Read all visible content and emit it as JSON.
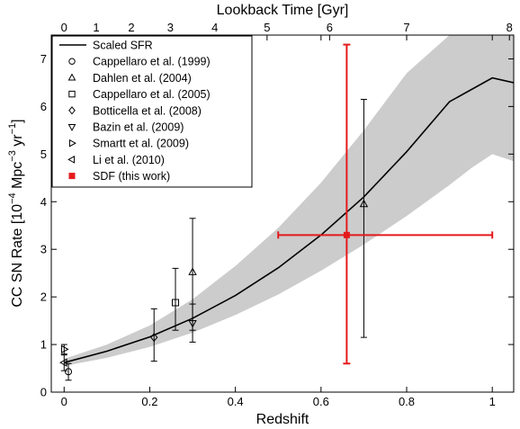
{
  "chart_data": {
    "type": "scatter",
    "xlabel": "Redshift",
    "ylabel_parts": [
      "CC SN Rate [10",
      "−4",
      " Mpc",
      "−3",
      " yr",
      "−1",
      "]"
    ],
    "top_xlabel": "Lookback Time [Gyr]",
    "xlim": [
      -0.03,
      1.05
    ],
    "ylim": [
      0,
      7.5
    ],
    "xticks": [
      0,
      0.2,
      0.4,
      0.6,
      0.8,
      1
    ],
    "xtick_labels": [
      "0",
      "0.2",
      "0.4",
      "0.6",
      "0.8",
      "1"
    ],
    "yticks": [
      0,
      1,
      2,
      3,
      4,
      5,
      6,
      7
    ],
    "ytick_labels": [
      "0",
      "1",
      "2",
      "3",
      "4",
      "5",
      "6",
      "7"
    ],
    "top_ticks": [
      {
        "label": "0",
        "z": 0.0
      },
      {
        "label": "1",
        "z": 0.075
      },
      {
        "label": "2",
        "z": 0.157
      },
      {
        "label": "3",
        "z": 0.248
      },
      {
        "label": "4",
        "z": 0.352
      },
      {
        "label": "5",
        "z": 0.474
      },
      {
        "label": "6",
        "z": 0.62
      },
      {
        "label": "7",
        "z": 0.8
      },
      {
        "label": "8",
        "z": 1.04
      }
    ],
    "legend_position": "top-left",
    "series": [
      {
        "name": "Scaled SFR",
        "kind": "line",
        "color": "#000000",
        "x": [
          0,
          0.1,
          0.2,
          0.3,
          0.4,
          0.5,
          0.6,
          0.7,
          0.8,
          0.9,
          1.0,
          1.05
        ],
        "y": [
          0.62,
          0.86,
          1.16,
          1.55,
          2.03,
          2.61,
          3.3,
          4.1,
          5.05,
          6.1,
          6.6,
          6.5
        ]
      },
      {
        "name": "SFR band",
        "kind": "band",
        "color": "#cccccc",
        "x": [
          0,
          0.1,
          0.2,
          0.3,
          0.4,
          0.5,
          0.6,
          0.7,
          0.8,
          0.9,
          0.95,
          1.0,
          1.05
        ],
        "lower": [
          0.55,
          0.72,
          0.95,
          1.25,
          1.62,
          2.05,
          2.55,
          3.1,
          3.7,
          4.35,
          4.7,
          5.0,
          4.85
        ],
        "upper": [
          0.7,
          1.0,
          1.4,
          1.95,
          2.65,
          3.45,
          4.4,
          5.5,
          6.7,
          7.5,
          7.5,
          7.5,
          7.5
        ]
      },
      {
        "name": "Cappellaro et al. (1999)",
        "kind": "points",
        "marker": "circle",
        "color": "#000000",
        "points": [
          {
            "x": 0.01,
            "y": 0.43,
            "lo": 0.25,
            "hi": 0.6
          }
        ]
      },
      {
        "name": "Dahlen et al. (2004)",
        "kind": "points",
        "marker": "triangle-up",
        "color": "#000000",
        "points": [
          {
            "x": 0.3,
            "y": 2.52,
            "lo": 1.3,
            "hi": 3.65
          },
          {
            "x": 0.7,
            "y": 3.95,
            "lo": 1.15,
            "hi": 6.15
          }
        ]
      },
      {
        "name": "Cappellaro et al. (2005)",
        "kind": "points",
        "marker": "square",
        "color": "#000000",
        "points": [
          {
            "x": 0.26,
            "y": 1.88,
            "lo": 1.3,
            "hi": 2.6
          }
        ]
      },
      {
        "name": "Botticella et al. (2008)",
        "kind": "points",
        "marker": "diamond",
        "color": "#000000",
        "points": [
          {
            "x": 0.21,
            "y": 1.15,
            "lo": 0.65,
            "hi": 1.75
          }
        ]
      },
      {
        "name": "Bazin et al. (2009)",
        "kind": "points",
        "marker": "triangle-down",
        "color": "#000000",
        "points": [
          {
            "x": 0.3,
            "y": 1.45,
            "lo": 1.05,
            "hi": 1.85
          }
        ]
      },
      {
        "name": "Smartt et al. (2009)",
        "kind": "points",
        "marker": "triangle-right",
        "color": "#000000",
        "points": [
          {
            "x": 0.0,
            "y": 0.9,
            "lo": 0.8,
            "hi": 1.0
          }
        ]
      },
      {
        "name": "Li et al. (2010)",
        "kind": "points",
        "marker": "triangle-left",
        "color": "#000000",
        "points": [
          {
            "x": 0.0,
            "y": 0.62,
            "lo": 0.45,
            "hi": 0.78
          }
        ]
      },
      {
        "name": "SDF (this work)",
        "kind": "points",
        "marker": "filled-square",
        "color": "#e41a1c",
        "points": [
          {
            "x": 0.66,
            "y": 3.3,
            "lo": 0.6,
            "hi": 7.3,
            "xlo": 0.5,
            "xhi": 1.0
          }
        ]
      }
    ],
    "legend": [
      {
        "label": "Scaled SFR",
        "marker": "line"
      },
      {
        "label": "Cappellaro et al. (1999)",
        "marker": "circle"
      },
      {
        "label": "Dahlen et al. (2004)",
        "marker": "triangle-up"
      },
      {
        "label": "Cappellaro et al. (2005)",
        "marker": "square"
      },
      {
        "label": "Botticella et al. (2008)",
        "marker": "diamond"
      },
      {
        "label": "Bazin et al. (2009)",
        "marker": "triangle-down"
      },
      {
        "label": "Smartt et al. (2009)",
        "marker": "triangle-right"
      },
      {
        "label": "Li et al. (2010)",
        "marker": "triangle-left"
      },
      {
        "label": "SDF (this work)",
        "marker": "filled-square"
      }
    ]
  }
}
